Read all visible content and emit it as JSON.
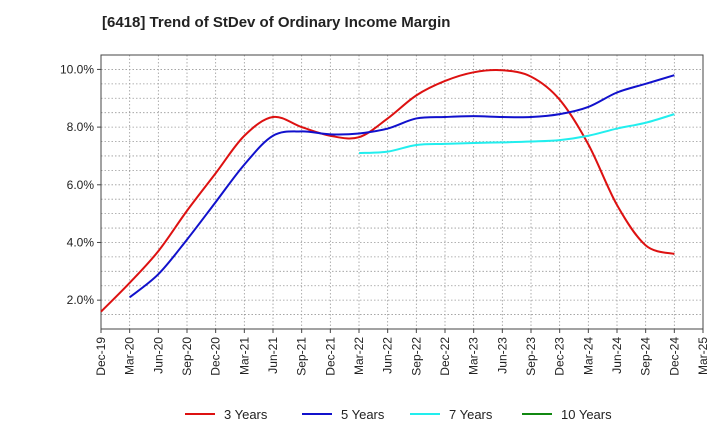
{
  "title": "[6418]  Trend of StDev of Ordinary Income Margin",
  "chart_data": {
    "type": "line",
    "x": [
      "Dec-19",
      "Mar-20",
      "Jun-20",
      "Sep-20",
      "Dec-20",
      "Mar-21",
      "Jun-21",
      "Sep-21",
      "Dec-21",
      "Mar-22",
      "Jun-22",
      "Sep-22",
      "Dec-22",
      "Mar-23",
      "Jun-23",
      "Sep-23",
      "Dec-23",
      "Mar-24",
      "Jun-24",
      "Sep-24",
      "Dec-24",
      "Mar-25"
    ],
    "ylim": [
      1.0,
      10.5
    ],
    "yticks": [
      "2.0%",
      "4.0%",
      "6.0%",
      "8.0%",
      "10.0%"
    ],
    "ytick_values": [
      2,
      4,
      6,
      8,
      10
    ],
    "grid": true,
    "legend_position": "bottom",
    "series": [
      {
        "name": "3 Years",
        "color": "#dd1111",
        "values": [
          1.6,
          2.6,
          3.7,
          5.1,
          6.4,
          7.7,
          8.35,
          8.0,
          7.7,
          7.65,
          8.3,
          9.1,
          9.6,
          9.9,
          9.97,
          9.75,
          8.95,
          7.4,
          5.3,
          3.9,
          3.6,
          null
        ]
      },
      {
        "name": "5 Years",
        "color": "#1111cc",
        "values": [
          null,
          2.1,
          2.9,
          4.1,
          5.4,
          6.7,
          7.7,
          7.85,
          7.75,
          7.78,
          7.95,
          8.3,
          8.35,
          8.38,
          8.35,
          8.35,
          8.45,
          8.7,
          9.2,
          9.5,
          9.8,
          null
        ]
      },
      {
        "name": "7 Years",
        "color": "#22eeee",
        "values": [
          null,
          null,
          null,
          null,
          null,
          null,
          null,
          null,
          null,
          7.1,
          7.15,
          7.38,
          7.42,
          7.45,
          7.47,
          7.5,
          7.55,
          7.7,
          7.95,
          8.15,
          8.45,
          null
        ]
      },
      {
        "name": "10 Years",
        "color": "#118811",
        "values": [
          null,
          null,
          null,
          null,
          null,
          null,
          null,
          null,
          null,
          null,
          null,
          null,
          null,
          null,
          null,
          null,
          null,
          null,
          null,
          null,
          null,
          null
        ]
      }
    ]
  }
}
